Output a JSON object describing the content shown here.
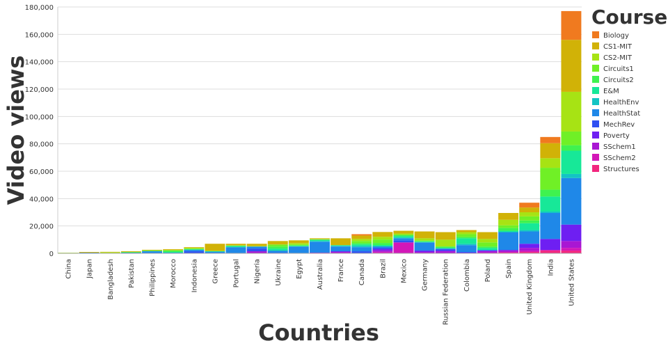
{
  "chart_data": {
    "type": "bar",
    "stacked": true,
    "xlabel": "Countries",
    "ylabel": "Video views",
    "ylim": [
      0,
      180000
    ],
    "yticks": [
      "0",
      "20,000",
      "40,000",
      "60,000",
      "80,000",
      "100,000",
      "120,000",
      "140,000",
      "160,000",
      "180,000"
    ],
    "ytick_values": [
      0,
      20000,
      40000,
      60000,
      80000,
      100000,
      120000,
      140000,
      160000,
      180000
    ],
    "grid": true,
    "legend_title": "Course",
    "legend_position": "top-right",
    "categories": [
      "China",
      "Japan",
      "Bangladesh",
      "Pakistan",
      "Philippines",
      "Morocco",
      "Indonesia",
      "Greece",
      "Portugal",
      "Nigeria",
      "Ukraine",
      "Egypt",
      "Australia",
      "France",
      "Canada",
      "Brazil",
      "Mexico",
      "Germany",
      "Russian Federation",
      "Colombia",
      "Poland",
      "Spain",
      "United Kingdom",
      "India",
      "United States"
    ],
    "series": [
      {
        "name": "Structures",
        "color": "#f2267e",
        "values": [
          0,
          0,
          0,
          0,
          0,
          0,
          0,
          0,
          0,
          0,
          0,
          0,
          0,
          0,
          0,
          300,
          0,
          0,
          0,
          0,
          0,
          500,
          1000,
          2000,
          2000
        ]
      },
      {
        "name": "SSchem2",
        "color": "#d317b8",
        "values": [
          0,
          0,
          0,
          0,
          0,
          0,
          0,
          0,
          0,
          0,
          0,
          0,
          0,
          0,
          0,
          800,
          8000,
          0,
          0,
          0,
          500,
          500,
          1000,
          500,
          2000
        ]
      },
      {
        "name": "SSchem1",
        "color": "#a917d3",
        "values": [
          0,
          0,
          0,
          0,
          0,
          0,
          0,
          0,
          0,
          1500,
          0,
          0,
          500,
          1000,
          0,
          1000,
          0,
          1000,
          1500,
          0,
          1000,
          1000,
          2000,
          0,
          5000
        ]
      },
      {
        "name": "Poverty",
        "color": "#6e1ff2",
        "values": [
          0,
          0,
          0,
          0,
          0,
          0,
          0,
          0,
          0,
          0,
          0,
          0,
          0,
          500,
          0,
          1000,
          0,
          1000,
          500,
          500,
          500,
          500,
          3000,
          8000,
          12000
        ]
      },
      {
        "name": "MechRev",
        "color": "#2f4ff2",
        "values": [
          0,
          0,
          0,
          0,
          0,
          0,
          1500,
          0,
          0,
          2000,
          500,
          0,
          0,
          0,
          1500,
          1000,
          1500,
          0,
          1000,
          500,
          0,
          0,
          0,
          0,
          0
        ]
      },
      {
        "name": "HealthStat",
        "color": "#1f88e8",
        "values": [
          300,
          500,
          0,
          500,
          1500,
          500,
          1000,
          1000,
          4500,
          1500,
          1500,
          5000,
          8000,
          3500,
          3000,
          1000,
          1500,
          6000,
          500,
          5000,
          500,
          13000,
          9000,
          19000,
          34000
        ]
      },
      {
        "name": "HealthEnv",
        "color": "#13c4c4",
        "values": [
          0,
          0,
          0,
          0,
          0,
          0,
          0,
          500,
          0,
          0,
          0,
          0,
          500,
          500,
          1000,
          0,
          500,
          0,
          0,
          1000,
          0,
          0,
          1000,
          1000,
          3000
        ]
      },
      {
        "name": "E&M",
        "color": "#17e898",
        "values": [
          0,
          0,
          300,
          0,
          300,
          500,
          500,
          0,
          1000,
          0,
          1500,
          500,
          1000,
          500,
          1000,
          1000,
          1000,
          500,
          500,
          4000,
          1500,
          1000,
          5000,
          11000,
          17000
        ]
      },
      {
        "name": "Circuits2",
        "color": "#3ff24f",
        "values": [
          0,
          0,
          0,
          500,
          0,
          1000,
          0,
          0,
          0,
          0,
          1500,
          500,
          0,
          0,
          1000,
          1500,
          1000,
          500,
          1000,
          1000,
          1000,
          2000,
          2000,
          5000,
          4000
        ]
      },
      {
        "name": "Circuits1",
        "color": "#70f026",
        "values": [
          0,
          0,
          0,
          0,
          0,
          0,
          500,
          0,
          0,
          0,
          1500,
          500,
          0,
          0,
          1500,
          2500,
          0,
          500,
          0,
          2000,
          3000,
          2000,
          3000,
          16000,
          10000
        ]
      },
      {
        "name": "CS2-MIT",
        "color": "#a7e314",
        "values": [
          200,
          0,
          500,
          0,
          500,
          500,
          500,
          500,
          500,
          500,
          0,
          1000,
          500,
          0,
          1500,
          2000,
          1000,
          1500,
          5000,
          1500,
          2500,
          4000,
          3000,
          7000,
          29000
        ]
      },
      {
        "name": "CS1-MIT",
        "color": "#d1b207",
        "values": [
          0,
          500,
          300,
          500,
          300,
          500,
          500,
          5000,
          1000,
          1500,
          2500,
          2000,
          500,
          5000,
          2500,
          3500,
          2000,
          5000,
          5500,
          1500,
          5000,
          5000,
          3500,
          11000,
          38000
        ]
      },
      {
        "name": "Biology",
        "color": "#f07a1f",
        "values": [
          0,
          0,
          0,
          0,
          0,
          0,
          0,
          0,
          0,
          0,
          0,
          0,
          0,
          0,
          1000,
          0,
          0,
          0,
          0,
          0,
          0,
          0,
          3500,
          4500,
          21000
        ]
      }
    ]
  }
}
